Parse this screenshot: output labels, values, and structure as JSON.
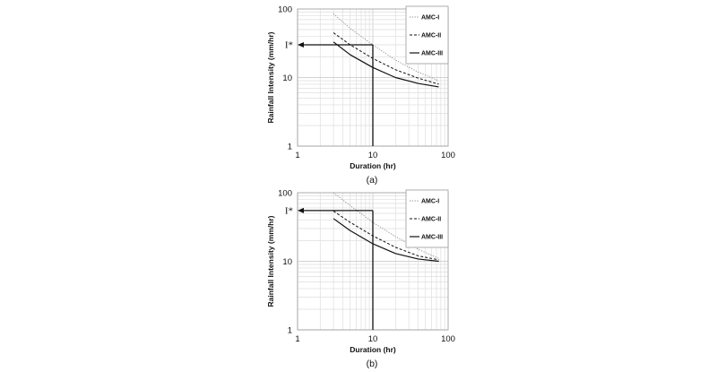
{
  "chart_data": [
    {
      "type": "line",
      "caption": "(a)",
      "xlabel": "Duration (hr)",
      "ylabel": "Rainfall Intensity (mm/hr)",
      "xscale": "log",
      "yscale": "log",
      "xlim": [
        1,
        100
      ],
      "ylim": [
        1,
        100
      ],
      "x_ticks": [
        "1",
        "10",
        "100"
      ],
      "y_ticks": [
        "1",
        "10",
        "100"
      ],
      "grid": true,
      "legend_position": "top-right",
      "x": [
        3,
        5,
        10,
        20,
        40,
        75
      ],
      "series": [
        {
          "name": "AMC-I",
          "style": "dotted",
          "values": [
            85,
            52,
            30,
            18,
            12,
            9
          ]
        },
        {
          "name": "AMC-II",
          "style": "dashed",
          "values": [
            45,
            30,
            19,
            13,
            9.8,
            8
          ]
        },
        {
          "name": "AMC-III",
          "style": "solid",
          "values": [
            33,
            21.5,
            14,
            10,
            8.2,
            7.3
          ]
        }
      ],
      "annotation": {
        "label": "I*",
        "x": 10,
        "y": 30
      }
    },
    {
      "type": "line",
      "caption": "(b)",
      "xlabel": "Duration (hr)",
      "ylabel": "Rainfall Intensity (mm/hr)",
      "xscale": "log",
      "yscale": "log",
      "xlim": [
        1,
        100
      ],
      "ylim": [
        1,
        100
      ],
      "x_ticks": [
        "1",
        "10",
        "100"
      ],
      "y_ticks": [
        "1",
        "10",
        "100"
      ],
      "grid": true,
      "legend_position": "top-right",
      "x": [
        3,
        5,
        10,
        20,
        40,
        75
      ],
      "series": [
        {
          "name": "AMC-I",
          "style": "dotted",
          "values": [
            100,
            65,
            37,
            23,
            15,
            11
          ]
        },
        {
          "name": "AMC-II",
          "style": "dashed",
          "values": [
            54,
            37,
            23.5,
            16,
            12,
            10.5
          ]
        },
        {
          "name": "AMC-III",
          "style": "solid",
          "values": [
            42,
            28,
            18,
            13,
            10.8,
            10
          ]
        }
      ],
      "annotation": {
        "label": "I*",
        "x": 10,
        "y": 55
      }
    }
  ]
}
